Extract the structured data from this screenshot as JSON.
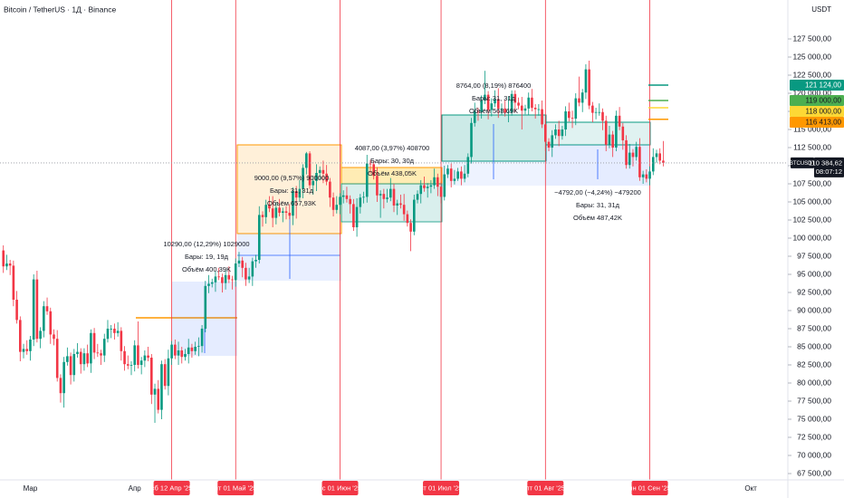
{
  "chart_data": {
    "type": "candlestick",
    "title": "Bitcoin / TetherUS · 1Д · Binance",
    "currency": "USDT",
    "up_color": "#089981",
    "down_color": "#f23645",
    "marker_color": "#f23645",
    "grid": false,
    "xlim": [
      "2025-02-20",
      "2025-10-12"
    ],
    "ylim": [
      66625,
      132875
    ],
    "yticks": [
      {
        "value": 67500,
        "label": "67 500,00"
      },
      {
        "value": 70000,
        "label": "70 000,00"
      },
      {
        "value": 72500,
        "label": "72 500,00"
      },
      {
        "value": 75000,
        "label": "75 000,00"
      },
      {
        "value": 77500,
        "label": "77 500,00"
      },
      {
        "value": 80000,
        "label": "80 000,00"
      },
      {
        "value": 82500,
        "label": "82 500,00"
      },
      {
        "value": 85000,
        "label": "85 000,00"
      },
      {
        "value": 87500,
        "label": "87 500,00"
      },
      {
        "value": 90000,
        "label": "90 000,00"
      },
      {
        "value": 92500,
        "label": "92 500,00"
      },
      {
        "value": 95000,
        "label": "95 000,00"
      },
      {
        "value": 97500,
        "label": "97 500,00"
      },
      {
        "value": 100000,
        "label": "100 000,00"
      },
      {
        "value": 102500,
        "label": "102 500,00"
      },
      {
        "value": 105000,
        "label": "105 000,00"
      },
      {
        "value": 107500,
        "label": "107 500,00"
      },
      {
        "value": 110000,
        "label": "110 000,00"
      },
      {
        "value": 112500,
        "label": "112 500,00"
      },
      {
        "value": 115000,
        "label": "115 000,00"
      },
      {
        "value": 117500,
        "label": "117 500,00"
      },
      {
        "value": 120000,
        "label": "120 000,00"
      },
      {
        "value": 122500,
        "label": "122 500,00"
      },
      {
        "value": 125000,
        "label": "125 000,00"
      },
      {
        "value": 127500,
        "label": "127 500,00"
      }
    ],
    "xticks": [
      {
        "value": "2025-03-01",
        "label": "Мар"
      },
      {
        "value": "2025-04-01",
        "label": "Апр"
      },
      {
        "value": "2025-10-01",
        "label": "Окт"
      }
    ],
    "markers": [
      {
        "value": "2025-04-12",
        "label": "сб 12 Апр '25"
      },
      {
        "value": "2025-05-01",
        "label": "чт 01 Май '25"
      },
      {
        "value": "2025-06-01",
        "label": "вс 01 Июн '25"
      },
      {
        "value": "2025-07-01",
        "label": "вт 01 Июл '25"
      },
      {
        "value": "2025-08-01",
        "label": "пт 01 Авг '25"
      },
      {
        "value": "2025-09-01",
        "label": "пн 01 Сен '25"
      }
    ],
    "price_tags": [
      {
        "value": 121124,
        "label": "121 124,00",
        "color": "#089981",
        "text_color": "#ffffff"
      },
      {
        "value": 119000,
        "label": "119 000,00",
        "color": "#4caf50",
        "text_color": "#131722"
      },
      {
        "value": 118000,
        "label": "118 000,00",
        "color": "#fdd835",
        "text_color": "#131722"
      },
      {
        "value": 116413,
        "label": "116 413,00",
        "color": "#ff9800",
        "text_color": "#131722"
      }
    ],
    "last_price": {
      "value": 110384.62,
      "label": "110 384,62",
      "symbol": "BTCUSDT",
      "countdown": "08:07:12"
    },
    "measurements": [
      {
        "lines": [
          "10290,00 (12,29%) 1029000",
          "Бары: 19, 19д",
          "Объём 400,39K"
        ]
      },
      {
        "lines": [
          "9000,00 (9,57%) 900000",
          "Бары: 31, 31д",
          "Объём 657,93K"
        ]
      },
      {
        "lines": [
          "4087,00 (3,97%) 408700",
          "Бары: 30, 30д",
          "Объём 438,05K"
        ]
      },
      {
        "lines": [
          "8764,00 (8,19%) 876400",
          "Бары: 31, 31д",
          "Объём 568,69K"
        ]
      },
      {
        "lines": [
          "−4792,00 (−4,24%) −479200",
          "Бары: 31, 31д",
          "Объём 487,42K"
        ]
      }
    ],
    "x": [
      "2025-02-21",
      "2025-02-22",
      "2025-02-23",
      "2025-02-24",
      "2025-02-25",
      "2025-02-26",
      "2025-02-27",
      "2025-02-28",
      "2025-03-01",
      "2025-03-02",
      "2025-03-03",
      "2025-03-04",
      "2025-03-05",
      "2025-03-06",
      "2025-03-07",
      "2025-03-08",
      "2025-03-09",
      "2025-03-10",
      "2025-03-11",
      "2025-03-12",
      "2025-03-13",
      "2025-03-14",
      "2025-03-15",
      "2025-03-16",
      "2025-03-17",
      "2025-03-18",
      "2025-03-19",
      "2025-03-20",
      "2025-03-21",
      "2025-03-22",
      "2025-03-23",
      "2025-03-24",
      "2025-03-25",
      "2025-03-26",
      "2025-03-27",
      "2025-03-28",
      "2025-03-29",
      "2025-03-30",
      "2025-03-31",
      "2025-04-01",
      "2025-04-02",
      "2025-04-03",
      "2025-04-04",
      "2025-04-05",
      "2025-04-06",
      "2025-04-07",
      "2025-04-08",
      "2025-04-09",
      "2025-04-10",
      "2025-04-11",
      "2025-04-12",
      "2025-04-13",
      "2025-04-14",
      "2025-04-15",
      "2025-04-16",
      "2025-04-17",
      "2025-04-18",
      "2025-04-19",
      "2025-04-20",
      "2025-04-21",
      "2025-04-22",
      "2025-04-23",
      "2025-04-24",
      "2025-04-25",
      "2025-04-26",
      "2025-04-27",
      "2025-04-28",
      "2025-04-29",
      "2025-04-30",
      "2025-05-01",
      "2025-05-02",
      "2025-05-03",
      "2025-05-04",
      "2025-05-05",
      "2025-05-06",
      "2025-05-07",
      "2025-05-08",
      "2025-05-09",
      "2025-05-10",
      "2025-05-11",
      "2025-05-12",
      "2025-05-13",
      "2025-05-14",
      "2025-05-15",
      "2025-05-16",
      "2025-05-17",
      "2025-05-18",
      "2025-05-19",
      "2025-05-20",
      "2025-05-21",
      "2025-05-22",
      "2025-05-23",
      "2025-05-24",
      "2025-05-25",
      "2025-05-26",
      "2025-05-27",
      "2025-05-28",
      "2025-05-29",
      "2025-05-30",
      "2025-05-31",
      "2025-06-01",
      "2025-06-02",
      "2025-06-03",
      "2025-06-04",
      "2025-06-05",
      "2025-06-06",
      "2025-06-07",
      "2025-06-08",
      "2025-06-09",
      "2025-06-10",
      "2025-06-11",
      "2025-06-12",
      "2025-06-13",
      "2025-06-14",
      "2025-06-15",
      "2025-06-16",
      "2025-06-17",
      "2025-06-18",
      "2025-06-19",
      "2025-06-20",
      "2025-06-21",
      "2025-06-22",
      "2025-06-23",
      "2025-06-24",
      "2025-06-25",
      "2025-06-26",
      "2025-06-27",
      "2025-06-28",
      "2025-06-29",
      "2025-06-30",
      "2025-07-01",
      "2025-07-02",
      "2025-07-03",
      "2025-07-04",
      "2025-07-05",
      "2025-07-06",
      "2025-07-07",
      "2025-07-08",
      "2025-07-09",
      "2025-07-10",
      "2025-07-11",
      "2025-07-12",
      "2025-07-13",
      "2025-07-14",
      "2025-07-15",
      "2025-07-16",
      "2025-07-17",
      "2025-07-18",
      "2025-07-19",
      "2025-07-20",
      "2025-07-21",
      "2025-07-22",
      "2025-07-23",
      "2025-07-24",
      "2025-07-25",
      "2025-07-26",
      "2025-07-27",
      "2025-07-28",
      "2025-07-29",
      "2025-07-30",
      "2025-07-31",
      "2025-08-01",
      "2025-08-02",
      "2025-08-03",
      "2025-08-04",
      "2025-08-05",
      "2025-08-06",
      "2025-08-07",
      "2025-08-08",
      "2025-08-09",
      "2025-08-10",
      "2025-08-11",
      "2025-08-12",
      "2025-08-13",
      "2025-08-14",
      "2025-08-15",
      "2025-08-16",
      "2025-08-17",
      "2025-08-18",
      "2025-08-19",
      "2025-08-20",
      "2025-08-21",
      "2025-08-22",
      "2025-08-23",
      "2025-08-24",
      "2025-08-25",
      "2025-08-26",
      "2025-08-27",
      "2025-08-28",
      "2025-08-29",
      "2025-08-30",
      "2025-08-31",
      "2025-09-01",
      "2025-09-02",
      "2025-09-03",
      "2025-09-04",
      "2025-09-05"
    ],
    "open": [
      98300,
      96100,
      96500,
      96200,
      91500,
      88700,
      84300,
      84700,
      84400,
      86000,
      94300,
      86100,
      87200,
      90600,
      89900,
      86700,
      86100,
      80700,
      78600,
      82900,
      83700,
      81100,
      84000,
      84300,
      82600,
      84100,
      82700,
      86900,
      84200,
      84100,
      83800,
      86100,
      87500,
      87500,
      86900,
      87200,
      84400,
      82600,
      82400,
      82500,
      85200,
      82500,
      83100,
      83800,
      83500,
      78400,
      79200,
      76300,
      82600,
      79600,
      83400,
      85300,
      83800,
      84500,
      83600,
      84000,
      84900,
      84400,
      85000,
      85100,
      87500,
      93400,
      93700,
      93900,
      94700,
      94600,
      93800,
      94900,
      94300,
      94200,
      96500,
      96900,
      95900,
      94300,
      94700,
      96800,
      97000,
      103200,
      102900,
      104600,
      104100,
      102800,
      104200,
      103500,
      103700,
      103500,
      103100,
      106500,
      105600,
      106800,
      109700,
      111700,
      107300,
      107900,
      109000,
      109400,
      108900,
      107800,
      105600,
      103900,
      104600,
      105700,
      105900,
      105400,
      104700,
      101500,
      104300,
      105600,
      105700,
      110300,
      110200,
      108600,
      105900,
      106100,
      105400,
      105600,
      106800,
      104500,
      104800,
      104600,
      103300,
      102100,
      100900,
      105300,
      106100,
      107300,
      106900,
      107100,
      107300,
      108400,
      107100,
      105700,
      108800,
      109600,
      107900,
      108200,
      109200,
      108200,
      108900,
      111200,
      115900,
      117500,
      117400,
      119000,
      119800,
      117700,
      118600,
      119200,
      117900,
      117900,
      117300,
      117400,
      119900,
      118700,
      118300,
      117600,
      117900,
      119400,
      118000,
      117800,
      117800,
      115700,
      113300,
      112500,
      114200,
      115000,
      114100,
      115000,
      117500,
      116600,
      116500,
      119300,
      118700,
      120100,
      123300,
      118300,
      117300,
      117400,
      117400,
      116200,
      112900,
      114300,
      112500,
      116900,
      115400,
      113500,
      110100,
      111800,
      111200,
      112600,
      108400,
      108800,
      108200,
      109200,
      111200,
      111700,
      110700
    ],
    "high": [
      99000,
      97700,
      97000,
      96900,
      92700,
      89200,
      85400,
      85900,
      86500,
      95000,
      95500,
      87700,
      91300,
      91800,
      90400,
      87400,
      87300,
      81200,
      83600,
      84900,
      84200,
      84700,
      85500,
      84800,
      84800,
      85300,
      87400,
      87600,
      85400,
      84600,
      86800,
      88700,
      88000,
      88200,
      88400,
      87700,
      85100,
      83800,
      83000,
      85900,
      88500,
      83600,
      84500,
      85000,
      84000,
      79900,
      80400,
      83100,
      83300,
      84600,
      85800,
      86000,
      85700,
      85000,
      84700,
      86100,
      85400,
      85700,
      86300,
      88000,
      94100,
      94900,
      94400,
      95400,
      95900,
      95100,
      95600,
      96100,
      94800,
      97200,
      98100,
      97400,
      96600,
      95900,
      97300,
      97700,
      104400,
      103700,
      105300,
      105800,
      105800,
      104900,
      105400,
      104200,
      104400,
      104700,
      107000,
      107200,
      108000,
      110200,
      111900,
      112000,
      108600,
      110200,
      109900,
      110700,
      110100,
      108300,
      106300,
      105800,
      106200,
      106600,
      107100,
      105900,
      105400,
      105500,
      106100,
      106400,
      111500,
      110800,
      110700,
      109800,
      106600,
      106800,
      106800,
      108300,
      107500,
      105300,
      106000,
      106100,
      103800,
      102600,
      106000,
      106600,
      108000,
      108500,
      107600,
      108000,
      109600,
      108900,
      107800,
      110000,
      110100,
      110300,
      109400,
      109700,
      109900,
      110100,
      111700,
      116600,
      118700,
      118000,
      119700,
      123100,
      120300,
      119300,
      120400,
      120700,
      118600,
      119100,
      119600,
      120400,
      120400,
      119400,
      119500,
      118400,
      120100,
      120600,
      118500,
      118500,
      119000,
      116200,
      113800,
      114900,
      115700,
      116200,
      115500,
      118200,
      118700,
      117600,
      120000,
      122300,
      120600,
      124000,
      124500,
      118800,
      118000,
      118600,
      117900,
      116900,
      115500,
      114800,
      117600,
      118100,
      115900,
      114200,
      113000,
      112300,
      113300,
      113800,
      109300,
      109500,
      109900,
      112400,
      112200,
      112400,
      113400
    ],
    "low": [
      95200,
      95600,
      94900,
      90600,
      88200,
      83000,
      83400,
      83900,
      83100,
      85100,
      85600,
      84800,
      86300,
      89400,
      85400,
      85200,
      80200,
      77300,
      76600,
      82400,
      79800,
      80200,
      83500,
      81300,
      81700,
      82200,
      81400,
      83300,
      83600,
      82500,
      82900,
      85600,
      86200,
      86000,
      86400,
      83100,
      81700,
      81900,
      81100,
      81600,
      82000,
      81200,
      82200,
      83000,
      77100,
      74500,
      75800,
      75000,
      79100,
      78300,
      82500,
      83300,
      82500,
      82700,
      83100,
      82700,
      83500,
      83900,
      83700,
      84200,
      87000,
      92400,
      93200,
      92600,
      94200,
      92500,
      92900,
      93800,
      92900,
      93300,
      96000,
      94600,
      93400,
      93800,
      93400,
      95900,
      96500,
      101600,
      102000,
      103600,
      101500,
      101900,
      103000,
      102200,
      102600,
      102600,
      101800,
      102700,
      105100,
      105500,
      108800,
      106800,
      106000,
      106500,
      108100,
      107600,
      107300,
      104300,
      103000,
      103400,
      103300,
      104800,
      104900,
      103400,
      101000,
      100200,
      103400,
      104800,
      104900,
      108900,
      108100,
      105000,
      102800,
      104100,
      104900,
      105100,
      103600,
      103200,
      104100,
      102400,
      101600,
      98200,
      100400,
      104800,
      104800,
      106400,
      105600,
      106200,
      106800,
      105800,
      104800,
      105200,
      108300,
      107000,
      107400,
      107900,
      107300,
      107700,
      108400,
      110300,
      115400,
      116200,
      116500,
      118500,
      116400,
      116800,
      118100,
      116600,
      117000,
      116800,
      116000,
      116900,
      117400,
      117800,
      115000,
      117100,
      117000,
      117500,
      116500,
      116900,
      115200,
      112000,
      112000,
      111200,
      113700,
      112700,
      113600,
      114100,
      116100,
      115200,
      115600,
      118200,
      117400,
      119200,
      117800,
      116000,
      116400,
      116900,
      114900,
      112000,
      112400,
      111200,
      112000,
      114900,
      112200,
      109600,
      109600,
      109900,
      110700,
      107900,
      107500,
      107700,
      107300,
      108700,
      110400,
      110200,
      109900
    ],
    "close": [
      96100,
      96500,
      96200,
      91500,
      88700,
      84300,
      84700,
      84400,
      86000,
      94300,
      86100,
      87200,
      90600,
      89900,
      86700,
      86100,
      80700,
      78600,
      82900,
      83700,
      81100,
      84000,
      84300,
      82600,
      84100,
      82700,
      86900,
      84200,
      84100,
      83800,
      86100,
      87500,
      87500,
      86900,
      87200,
      84400,
      82600,
      82400,
      82500,
      85200,
      82500,
      83100,
      83800,
      83500,
      78400,
      79200,
      76300,
      82600,
      79600,
      83400,
      85300,
      83800,
      84500,
      83600,
      84000,
      84900,
      84400,
      85000,
      85100,
      87500,
      93400,
      93700,
      93900,
      94700,
      94600,
      93800,
      94900,
      94300,
      94200,
      96500,
      96900,
      95900,
      94300,
      94700,
      96800,
      97000,
      103200,
      102900,
      104600,
      104100,
      102800,
      104200,
      103500,
      103700,
      103500,
      103100,
      106500,
      105600,
      106800,
      109700,
      111700,
      107300,
      107900,
      109000,
      109400,
      108900,
      107800,
      105600,
      103900,
      104600,
      105700,
      105900,
      105400,
      104700,
      101500,
      104300,
      105600,
      105700,
      110300,
      110200,
      108600,
      105900,
      106100,
      105400,
      105600,
      106800,
      104500,
      104800,
      104600,
      103300,
      102100,
      100900,
      105300,
      106100,
      107300,
      106900,
      107100,
      107300,
      108400,
      107100,
      105700,
      108800,
      109600,
      107900,
      108200,
      109200,
      108200,
      108900,
      111200,
      115900,
      117500,
      117400,
      119000,
      119800,
      117700,
      118600,
      119200,
      117900,
      117900,
      117300,
      117400,
      119900,
      118700,
      118300,
      117600,
      117900,
      119400,
      118000,
      117800,
      117800,
      115700,
      113300,
      112500,
      114200,
      115000,
      114100,
      115000,
      117500,
      116600,
      116500,
      119300,
      118700,
      120100,
      123300,
      118300,
      117300,
      117400,
      117400,
      116200,
      112900,
      114300,
      112500,
      116900,
      115400,
      113500,
      110100,
      111800,
      111200,
      112600,
      108400,
      108800,
      108200,
      109200,
      111200,
      111700,
      110700,
      110400
    ]
  }
}
